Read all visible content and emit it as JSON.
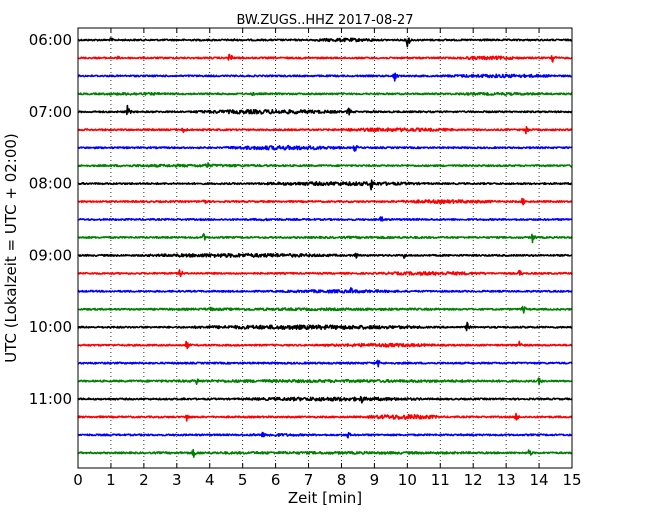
{
  "chart_data": {
    "type": "line",
    "title": "BW.ZUGS..HHZ 2017-08-27",
    "xlabel": "Zeit  [min]",
    "ylabel": "UTC (Lokalzeit = UTC + 02:00)",
    "xlim": [
      0,
      15
    ],
    "x_ticks": [
      "0",
      "1",
      "2",
      "3",
      "4",
      "5",
      "6",
      "7",
      "8",
      "9",
      "10",
      "11",
      "12",
      "13",
      "14",
      "15"
    ],
    "y_ticks": [
      "06:00",
      "07:00",
      "08:00",
      "09:00",
      "10:00",
      "11:00"
    ],
    "row_interval_min": 15,
    "grid": "vertical dotted",
    "colors": [
      "#000000",
      "#ff0000",
      "#0000ff",
      "#008000"
    ],
    "series": [
      {
        "start": "06:00",
        "color": "#000000",
        "spikes": [
          {
            "t": 1.0,
            "a": 0.35
          },
          {
            "t": 4.7,
            "a": 0.3
          },
          {
            "t": 7.8,
            "a": 0.2
          },
          {
            "t": 8.9,
            "a": 0.25
          },
          {
            "t": 10.0,
            "a": 1.0
          }
        ],
        "bursts": [
          {
            "t0": 7.1,
            "t1": 9.1,
            "a": 0.2
          }
        ]
      },
      {
        "start": "06:15",
        "color": "#ff0000",
        "spikes": [
          {
            "t": 1.2,
            "a": 0.25
          },
          {
            "t": 4.6,
            "a": 0.85
          },
          {
            "t": 14.4,
            "a": 0.85
          }
        ],
        "bursts": [
          {
            "t0": 11.5,
            "t1": 13.5,
            "a": 0.2
          }
        ]
      },
      {
        "start": "06:30",
        "color": "#0000ff",
        "spikes": [
          {
            "t": 9.6,
            "a": 0.8
          },
          {
            "t": 12.3,
            "a": 0.2
          }
        ],
        "bursts": [
          {
            "t0": 11.0,
            "t1": 14.6,
            "a": 0.2
          }
        ]
      },
      {
        "start": "06:45",
        "color": "#008000",
        "spikes": [
          {
            "t": 5.3,
            "a": 0.3
          },
          {
            "t": 15.0,
            "a": 0.3
          }
        ],
        "bursts": [
          {
            "t0": 0.5,
            "t1": 3.0,
            "a": 0.15
          },
          {
            "t0": 11.0,
            "t1": 14.5,
            "a": 0.15
          }
        ]
      },
      {
        "start": "07:00",
        "color": "#000000",
        "spikes": [
          {
            "t": 1.5,
            "a": 0.75
          },
          {
            "t": 8.2,
            "a": 0.7
          },
          {
            "t": 9.0,
            "a": 0.3
          }
        ],
        "bursts": [
          {
            "t0": 3.5,
            "t1": 8.0,
            "a": 0.25
          }
        ]
      },
      {
        "start": "07:15",
        "color": "#ff0000",
        "spikes": [
          {
            "t": 3.2,
            "a": 0.65
          },
          {
            "t": 13.6,
            "a": 0.65
          }
        ],
        "bursts": [
          {
            "t0": 7.7,
            "t1": 11.6,
            "a": 0.2
          }
        ]
      },
      {
        "start": "07:30",
        "color": "#0000ff",
        "spikes": [
          {
            "t": 8.4,
            "a": 0.6
          }
        ],
        "bursts": [
          {
            "t0": 4.5,
            "t1": 8.0,
            "a": 0.25
          }
        ]
      },
      {
        "start": "07:45",
        "color": "#008000",
        "spikes": [
          {
            "t": 3.9,
            "a": 0.65
          },
          {
            "t": 15.0,
            "a": 0.35
          }
        ],
        "bursts": [
          {
            "t0": 0.3,
            "t1": 6.5,
            "a": 0.15
          }
        ]
      },
      {
        "start": "08:00",
        "color": "#000000",
        "spikes": [
          {
            "t": 8.9,
            "a": 0.85
          }
        ],
        "bursts": [
          {
            "t0": 5.5,
            "t1": 10.5,
            "a": 0.22
          }
        ]
      },
      {
        "start": "08:15",
        "color": "#ff0000",
        "spikes": [
          {
            "t": 3.8,
            "a": 0.7
          },
          {
            "t": 13.5,
            "a": 0.55
          }
        ],
        "bursts": [
          {
            "t0": 9.5,
            "t1": 12.8,
            "a": 0.2
          }
        ]
      },
      {
        "start": "08:30",
        "color": "#0000ff",
        "spikes": [
          {
            "t": 9.2,
            "a": 0.6
          },
          {
            "t": 5.6,
            "a": 0.2
          }
        ],
        "bursts": [
          {
            "t0": 5.0,
            "t1": 6.5,
            "a": 0.12
          }
        ]
      },
      {
        "start": "08:45",
        "color": "#008000",
        "spikes": [
          {
            "t": 3.8,
            "a": 0.6
          },
          {
            "t": 13.8,
            "a": 0.65
          }
        ],
        "bursts": [
          {
            "t0": 6.0,
            "t1": 12.0,
            "a": 0.12
          }
        ]
      },
      {
        "start": "09:00",
        "color": "#000000",
        "spikes": [
          {
            "t": 8.4,
            "a": 0.65
          },
          {
            "t": 9.9,
            "a": 0.4
          }
        ],
        "bursts": [
          {
            "t0": 2.0,
            "t1": 8.0,
            "a": 0.22
          }
        ]
      },
      {
        "start": "09:15",
        "color": "#ff0000",
        "spikes": [
          {
            "t": 3.1,
            "a": 0.6
          },
          {
            "t": 13.4,
            "a": 0.55
          }
        ],
        "bursts": [
          {
            "t0": 9.0,
            "t1": 12.5,
            "a": 0.2
          }
        ]
      },
      {
        "start": "09:30",
        "color": "#0000ff",
        "spikes": [
          {
            "t": 8.3,
            "a": 0.6
          }
        ],
        "bursts": [
          {
            "t0": 6.0,
            "t1": 10.0,
            "a": 0.18
          }
        ]
      },
      {
        "start": "09:45",
        "color": "#008000",
        "spikes": [
          {
            "t": 4.0,
            "a": 0.5
          },
          {
            "t": 13.5,
            "a": 0.7
          }
        ],
        "bursts": [
          {
            "t0": 1.0,
            "t1": 12.5,
            "a": 0.14
          }
        ]
      },
      {
        "start": "10:00",
        "color": "#000000",
        "spikes": [
          {
            "t": 6.0,
            "a": 0.5
          },
          {
            "t": 11.8,
            "a": 0.7
          },
          {
            "t": 13.6,
            "a": 0.25
          }
        ],
        "bursts": [
          {
            "t0": 3.5,
            "t1": 10.5,
            "a": 0.25
          }
        ]
      },
      {
        "start": "10:15",
        "color": "#ff0000",
        "spikes": [
          {
            "t": 3.3,
            "a": 0.65
          },
          {
            "t": 13.4,
            "a": 0.65
          },
          {
            "t": 9.5,
            "a": 0.3
          }
        ],
        "bursts": [
          {
            "t0": 7.5,
            "t1": 11.0,
            "a": 0.2
          }
        ]
      },
      {
        "start": "10:30",
        "color": "#0000ff",
        "spikes": [
          {
            "t": 9.1,
            "a": 0.6
          }
        ],
        "bursts": [
          {
            "t0": 0.5,
            "t1": 15.0,
            "a": 0.1
          }
        ]
      },
      {
        "start": "10:45",
        "color": "#008000",
        "spikes": [
          {
            "t": 3.6,
            "a": 0.5
          },
          {
            "t": 14.0,
            "a": 0.55
          }
        ],
        "bursts": [
          {
            "t0": 0.3,
            "t1": 14.8,
            "a": 0.16
          }
        ]
      },
      {
        "start": "11:00",
        "color": "#000000",
        "spikes": [
          {
            "t": 8.6,
            "a": 0.65
          },
          {
            "t": 3.2,
            "a": 0.25
          }
        ],
        "bursts": [
          {
            "t0": 5.0,
            "t1": 10.5,
            "a": 0.22
          }
        ]
      },
      {
        "start": "11:15",
        "color": "#ff0000",
        "spikes": [
          {
            "t": 3.3,
            "a": 0.6
          },
          {
            "t": 13.3,
            "a": 0.6
          },
          {
            "t": 10.0,
            "a": 0.35
          }
        ],
        "bursts": [
          {
            "t0": 8.8,
            "t1": 11.0,
            "a": 0.28
          }
        ]
      },
      {
        "start": "11:30",
        "color": "#0000ff",
        "spikes": [
          {
            "t": 5.6,
            "a": 0.4
          },
          {
            "t": 8.2,
            "a": 0.45
          }
        ],
        "bursts": [
          {
            "t0": 5.0,
            "t1": 7.0,
            "a": 0.16
          }
        ]
      },
      {
        "start": "11:45",
        "color": "#008000",
        "spikes": [
          {
            "t": 3.5,
            "a": 0.65
          },
          {
            "t": 13.7,
            "a": 0.55
          }
        ],
        "bursts": [
          {
            "t0": 0.3,
            "t1": 14.7,
            "a": 0.14
          }
        ]
      }
    ]
  }
}
